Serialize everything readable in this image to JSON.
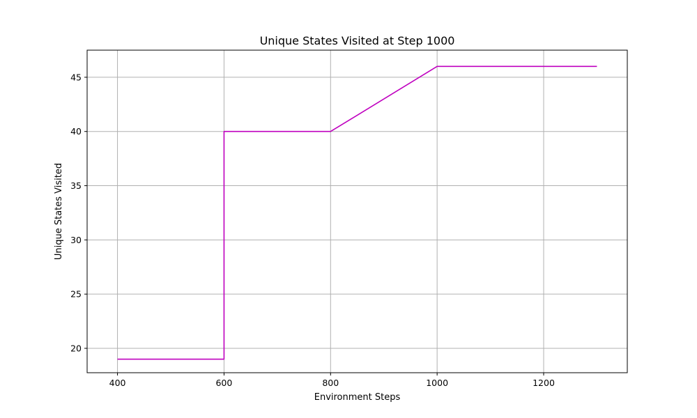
{
  "chart_data": {
    "type": "line",
    "title": "Unique States Visited at Step 1000",
    "xlabel": "Environment Steps",
    "ylabel": "Unique States Visited",
    "xlim": [
      343,
      1357
    ],
    "ylim": [
      17.75,
      47.5
    ],
    "xticks": [
      400,
      600,
      800,
      1000,
      1200
    ],
    "xtick_labels": [
      "400",
      "600",
      "800",
      "1000",
      "1200"
    ],
    "yticks": [
      20,
      25,
      30,
      35,
      40,
      45
    ],
    "ytick_labels": [
      "20",
      "25",
      "30",
      "35",
      "40",
      "45"
    ],
    "grid": true,
    "series": [
      {
        "color": "#bf00bf",
        "x": [
          400,
          600,
          600,
          800,
          1000,
          1300
        ],
        "y": [
          19,
          19,
          40,
          40,
          46,
          46
        ]
      }
    ]
  }
}
